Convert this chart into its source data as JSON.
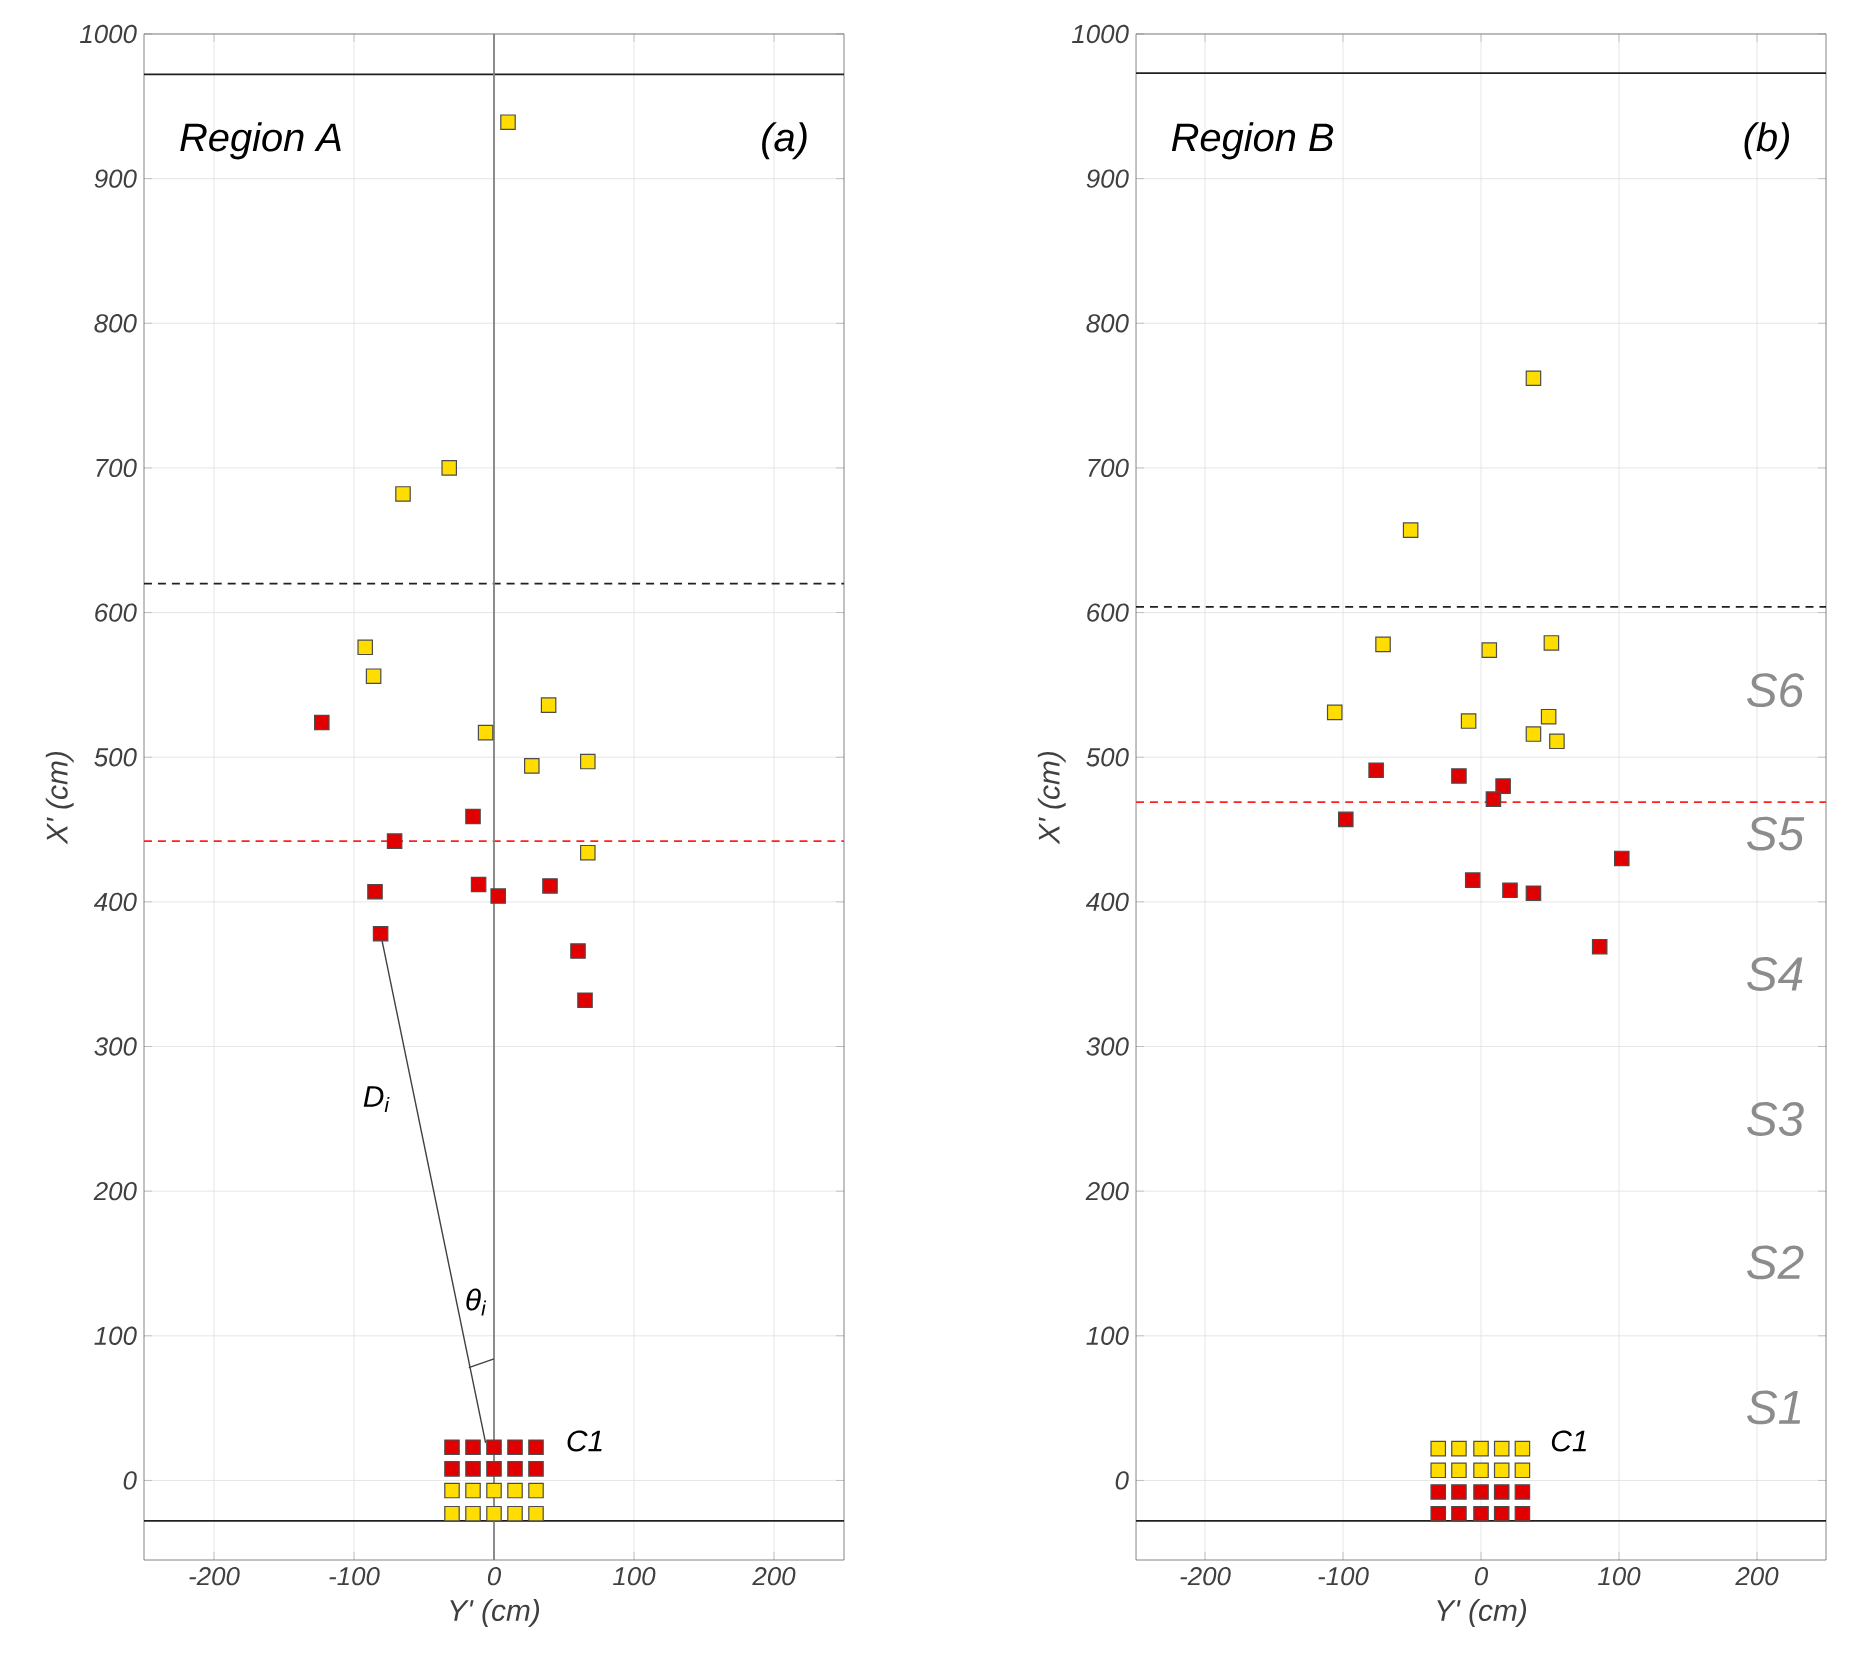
{
  "chart_data": [
    {
      "type": "scatter",
      "xlabel": "Y' (cm)",
      "ylabel": "X' (cm)",
      "xlim": [
        -250,
        250
      ],
      "ylim": [
        -55,
        1000
      ],
      "xticks": [
        -200,
        -100,
        0,
        100,
        200
      ],
      "yticks": [
        0,
        100,
        200,
        300,
        400,
        500,
        600,
        700,
        800,
        900,
        1000
      ],
      "grid": true,
      "marker": "square",
      "series": [
        {
          "color": "#ffdd00",
          "x": [
            10,
            -32,
            -65,
            -92,
            -86,
            -6,
            39,
            27,
            67,
            67
          ],
          "values": [
            939,
            700,
            682,
            576,
            556,
            517,
            536,
            494,
            497,
            434
          ]
        },
        {
          "color": "#e00000",
          "x": [
            -123,
            -15,
            -71,
            -85,
            -11,
            3,
            40,
            -81,
            60,
            65
          ],
          "values": [
            524,
            459,
            442,
            407,
            412,
            404,
            411,
            378,
            366,
            332
          ]
        },
        {
          "color": "#e00000",
          "x": [
            -30,
            -15,
            0,
            15,
            30,
            -30,
            -15,
            0,
            15,
            30
          ],
          "values": [
            23,
            23,
            23,
            23,
            23,
            8,
            8,
            8,
            8,
            8
          ]
        },
        {
          "color": "#ffdd00",
          "x": [
            -30,
            -15,
            0,
            15,
            30,
            -30,
            -15,
            0,
            15,
            30
          ],
          "values": [
            -7,
            -7,
            -7,
            -7,
            -7,
            -23,
            -23,
            -23,
            -23,
            -23
          ]
        },
        {
          "type": "line",
          "marker": "none",
          "color": "#404040",
          "x": [
            -81,
            -6
          ],
          "values": [
            378,
            26
          ]
        },
        {
          "type": "line",
          "marker": "none",
          "color": "#404040",
          "x": [
            -18,
            0
          ],
          "values": [
            78,
            84
          ]
        }
      ],
      "ref_lines": [
        {
          "axis": "y",
          "value": 972,
          "color": "#202020",
          "line_style": "solid"
        },
        {
          "axis": "y",
          "value": 620,
          "color": "#202020",
          "line_style": "dashed"
        },
        {
          "axis": "y",
          "value": 442,
          "color": "#ff2020",
          "line_style": "dashed"
        },
        {
          "axis": "y",
          "value": -28,
          "color": "#202020",
          "line_style": "solid"
        },
        {
          "axis": "x",
          "value": 0,
          "color": "#808080",
          "line_style": "solid"
        }
      ],
      "annotations": [
        "Region A",
        "(a)",
        "D$_{i}$",
        "θ$_{i}$",
        "C1"
      ]
    },
    {
      "type": "scatter",
      "xlabel": "Y' (cm)",
      "ylabel": "X' (cm)",
      "xlim": [
        -250,
        250
      ],
      "ylim": [
        -55,
        1000
      ],
      "xticks": [
        -200,
        -100,
        0,
        100,
        200
      ],
      "yticks": [
        0,
        100,
        200,
        300,
        400,
        500,
        600,
        700,
        800,
        900,
        1000
      ],
      "grid": true,
      "marker": "square",
      "series": [
        {
          "color": "#ffdd00",
          "x": [
            38,
            -51,
            -71,
            6,
            51,
            -106,
            -9,
            49,
            38,
            55
          ],
          "values": [
            762,
            657,
            578,
            574,
            579,
            531,
            525,
            528,
            516,
            511
          ]
        },
        {
          "color": "#e00000",
          "x": [
            -76,
            -16,
            16,
            9,
            -98,
            102,
            -6,
            21,
            38,
            86
          ],
          "values": [
            491,
            487,
            480,
            471,
            457,
            430,
            415,
            408,
            406,
            369
          ]
        },
        {
          "color": "#ffdd00",
          "x": [
            -31,
            -16,
            0,
            15,
            30,
            -31,
            -16,
            0,
            15,
            30
          ],
          "values": [
            22,
            22,
            22,
            22,
            22,
            7,
            7,
            7,
            7,
            7
          ]
        },
        {
          "color": "#e00000",
          "x": [
            -31,
            -16,
            0,
            15,
            30,
            -31,
            -16,
            0,
            15,
            30
          ],
          "values": [
            -8,
            -8,
            -8,
            -8,
            -8,
            -23,
            -23,
            -23,
            -23,
            -23
          ]
        }
      ],
      "ref_lines": [
        {
          "axis": "y",
          "value": 973,
          "color": "#202020",
          "line_style": "solid"
        },
        {
          "axis": "y",
          "value": 604,
          "color": "#202020",
          "line_style": "dashed"
        },
        {
          "axis": "y",
          "value": 469,
          "color": "#ff2020",
          "line_style": "dashed"
        },
        {
          "axis": "y",
          "value": -28,
          "color": "#202020",
          "line_style": "solid"
        }
      ],
      "annotations": [
        "Region B",
        "(b)",
        "C1",
        "S6",
        "S5",
        "S4",
        "S3",
        "S2",
        "S1"
      ]
    }
  ]
}
